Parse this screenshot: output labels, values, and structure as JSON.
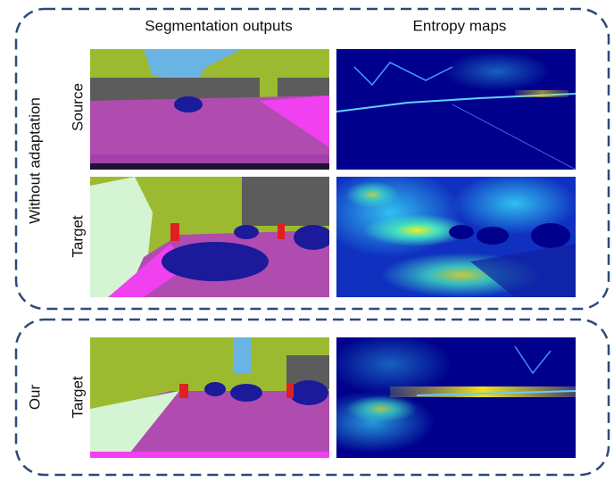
{
  "header": {
    "columns": [
      "Segmentation outputs",
      "Entropy maps"
    ]
  },
  "groups": [
    {
      "label": "Without adaptation",
      "rows": [
        "Source",
        "Target"
      ]
    },
    {
      "label": "Our",
      "rows": [
        "Target"
      ]
    }
  ]
}
